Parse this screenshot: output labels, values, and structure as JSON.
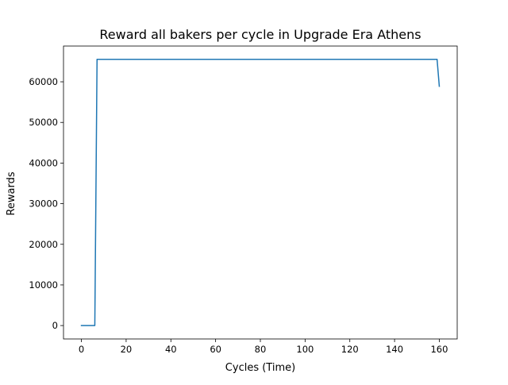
{
  "chart_data": {
    "type": "line",
    "title": "Reward all bakers per cycle in Upgrade Era Athens",
    "xlabel": "Cycles (Time)",
    "ylabel": "Rewards",
    "xlim": [
      -8,
      168
    ],
    "ylim": [
      -3300,
      68800
    ],
    "xticks": [
      0,
      20,
      40,
      60,
      80,
      100,
      120,
      140,
      160
    ],
    "yticks": [
      0,
      10000,
      20000,
      30000,
      40000,
      50000,
      60000
    ],
    "grid": false,
    "legend": "none",
    "series": [
      {
        "color": "#1f77b4",
        "x": [
          0,
          1,
          2,
          3,
          4,
          5,
          6,
          7,
          159,
          160
        ],
        "y": [
          0,
          0,
          0,
          0,
          0,
          0,
          0,
          65536,
          65536,
          58900
        ]
      }
    ]
  }
}
